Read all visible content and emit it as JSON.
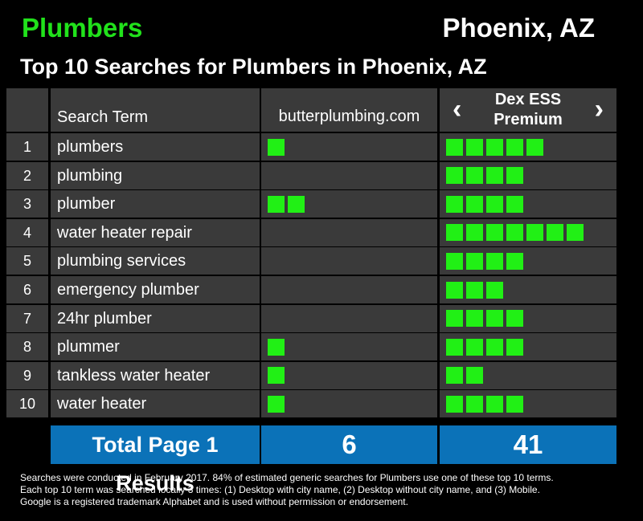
{
  "header": {
    "category": "Plumbers",
    "city": "Phoenix, AZ",
    "subtitle": "Top 10 Searches for Plumbers in Phoenix, AZ"
  },
  "table": {
    "col_term": "Search Term",
    "col_site": "butterplumbing.com",
    "col_dex": "Dex ESS Premium",
    "rows": [
      {
        "rank": "1",
        "term": "plumbers",
        "site": 1,
        "dex": 5
      },
      {
        "rank": "2",
        "term": "plumbing",
        "site": 0,
        "dex": 4
      },
      {
        "rank": "3",
        "term": "plumber",
        "site": 2,
        "dex": 4
      },
      {
        "rank": "4",
        "term": "water heater repair",
        "site": 0,
        "dex": 7
      },
      {
        "rank": "5",
        "term": "plumbing services",
        "site": 0,
        "dex": 4
      },
      {
        "rank": "6",
        "term": "emergency plumber",
        "site": 0,
        "dex": 3
      },
      {
        "rank": "7",
        "term": "24hr plumber",
        "site": 0,
        "dex": 4
      },
      {
        "rank": "8",
        "term": "plummer",
        "site": 1,
        "dex": 4
      },
      {
        "rank": "9",
        "term": "tankless water heater",
        "site": 1,
        "dex": 2
      },
      {
        "rank": "10",
        "term": "water heater",
        "site": 1,
        "dex": 4
      }
    ]
  },
  "totals": {
    "label": "Total Page 1 Results",
    "site": "6",
    "dex": "41"
  },
  "footnote": [
    "Searches were conducted in February 2017. 84% of estimated generic searches for Plumbers use one of these top 10 terms.",
    "Each top 10 term was searched locally 3 times: (1) Desktop with city name, (2) Desktop without city name, and (3) Mobile.",
    "Google is a registered trademark Alphabet and is used without permission or endorsement."
  ],
  "colors": {
    "bar": "#21f015",
    "accent_green": "#21e21b",
    "cell": "#3a3a3a",
    "total_bg": "#0b72b8"
  }
}
